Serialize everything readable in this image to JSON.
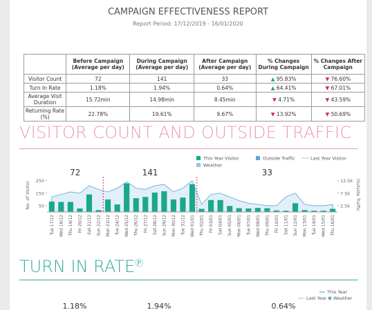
{
  "header": {
    "title": "CAMPAIGN EFFECTIVENESS REPORT",
    "subtitle": "Report Period: 17/12/2019 - 16/01/2020"
  },
  "table": {
    "columns": [
      "Before Campaign (Average per day)",
      "During Campaign (Average per day)",
      "After Campaign (Average per day)",
      "% Changes During Campaign",
      "% Changes After Campaign"
    ],
    "rows": [
      {
        "label": "Visitor Count",
        "cells": [
          {
            "text": "72"
          },
          {
            "text": "141"
          },
          {
            "text": "33"
          },
          {
            "text": "95.83%",
            "trend": "up"
          },
          {
            "text": "76.60%",
            "trend": "down"
          }
        ]
      },
      {
        "label": "Turn In Rate",
        "cells": [
          {
            "text": "1.18%"
          },
          {
            "text": "1.94%"
          },
          {
            "text": "0.64%"
          },
          {
            "text": "64.41%",
            "trend": "up"
          },
          {
            "text": "67.01%",
            "trend": "down"
          }
        ]
      },
      {
        "label": "Average Visit Duration",
        "cells": [
          {
            "text": "15.72min"
          },
          {
            "text": "14.98min"
          },
          {
            "text": "8.45min"
          },
          {
            "text": "4.71%",
            "trend": "down"
          },
          {
            "text": "43.59%",
            "trend": "down"
          }
        ]
      },
      {
        "label": "Returning Rate (%)",
        "cells": [
          {
            "text": "22.78%"
          },
          {
            "text": "19.61%"
          },
          {
            "text": "9.67%"
          },
          {
            "text": "13.92%",
            "trend": "down"
          },
          {
            "text": "50.69%",
            "trend": "down"
          }
        ]
      }
    ]
  },
  "section1": {
    "title": "VISITOR COUNT AND OUTSIDE TRAFFIC"
  },
  "chart_data": {
    "type": "bar",
    "categories": [
      "Tue 17/12",
      "Wed 18/12",
      "Thu 19/12",
      "Fri 20/12",
      "Sat 21/12",
      "Sun 22/12",
      "Mon 23/12",
      "Tue 24/12",
      "Wed 25/12",
      "Thu 26/12",
      "Fri 27/12",
      "Sat 28/12",
      "Sun 29/12",
      "Mon 30/12",
      "Tue 31/12",
      "Wed 01/01",
      "Thu 02/01",
      "Fri 03/01",
      "Sat 04/01",
      "Sun 05/01",
      "Mon 06/01",
      "Tue 07/01",
      "Wed 08/01",
      "Thu 09/01",
      "Fri 10/01",
      "Sat 11/01",
      "Sun 12/01",
      "Mon 13/01",
      "Tue 14/01",
      "Wed 15/01",
      "Thu 16/01"
    ],
    "series": [
      {
        "name": "This Year Visitor",
        "color": "#1aa88a",
        "values": [
          83,
          80,
          80,
          28,
          140,
          15,
          100,
          60,
          228,
          110,
          120,
          155,
          165,
          100,
          115,
          222,
          25,
          95,
          95,
          48,
          30,
          28,
          32,
          30,
          12,
          10,
          70,
          15,
          10,
          10,
          25
        ]
      },
      {
        "name": "Outside Traffic",
        "color": "#5ba6d6",
        "axis": "y2",
        "values": [
          6000,
          7000,
          8000,
          7500,
          10500,
          9000,
          8000,
          9500,
          12000,
          9500,
          9000,
          10500,
          11000,
          8000,
          9500,
          12500,
          3000,
          7000,
          7500,
          6000,
          4500,
          3500,
          3000,
          2500,
          2500,
          6000,
          7500,
          3000,
          2500,
          2500,
          3000
        ]
      }
    ],
    "legend_extra": [
      "Last Year Visitor",
      "Weather"
    ],
    "annotations": [
      "72",
      "141",
      "33"
    ],
    "ylabel": "No. of Visitor",
    "y2label": "Outside Traffic",
    "ylim": [
      0,
      270
    ],
    "yticks": [
      50,
      150,
      250
    ],
    "y2lim": [
      0,
      13500
    ],
    "y2ticks": [
      {
        "value": 2500,
        "label": "2.5k"
      },
      {
        "value": 7500,
        "label": "7.5k"
      },
      {
        "value": 12500,
        "label": "12.5k"
      }
    ]
  },
  "section2": {
    "title": "TURN IN RATE",
    "legend": [
      "This Year",
      "Last Year",
      "Weather"
    ],
    "values": [
      "1.18%",
      "1.94%",
      "0.64%"
    ]
  }
}
